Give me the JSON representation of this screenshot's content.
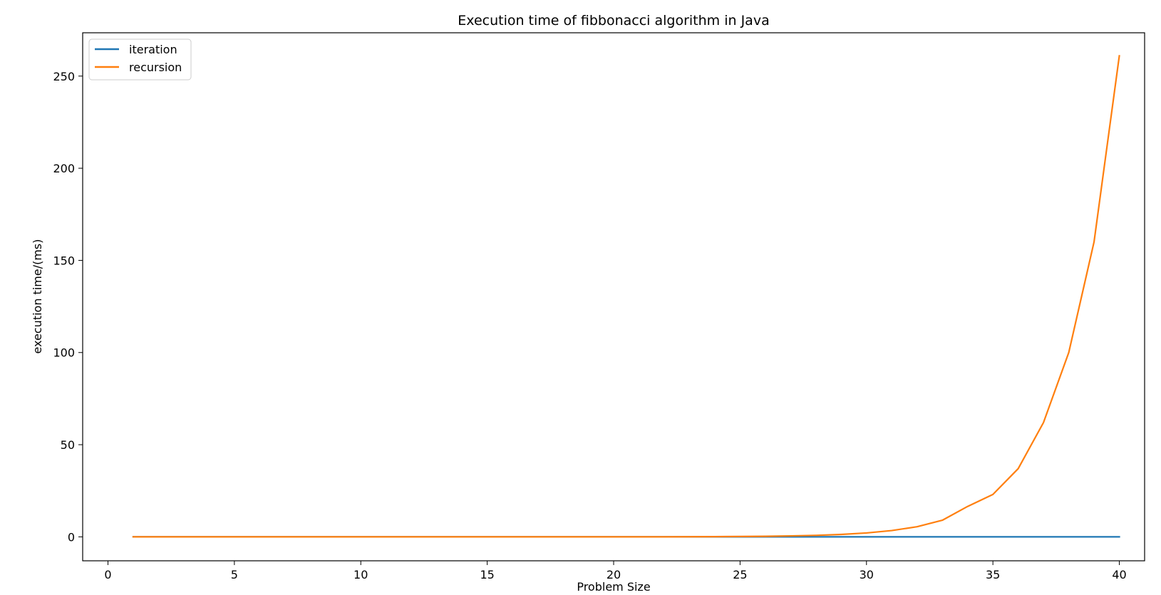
{
  "chart_data": {
    "type": "line",
    "title": "Execution time of fibbonacci algorithm in Java",
    "xlabel": "Problem Size",
    "ylabel": "execution time/(ms)",
    "xlim": [
      -1,
      41
    ],
    "ylim": [
      -13,
      273.5
    ],
    "x_ticks": [
      0,
      5,
      10,
      15,
      20,
      25,
      30,
      35,
      40
    ],
    "x_tick_labels": [
      "0",
      "5",
      "10",
      "15",
      "20",
      "25",
      "30",
      "35",
      "40"
    ],
    "y_ticks": [
      0,
      50,
      100,
      150,
      200,
      250
    ],
    "y_tick_labels": [
      "0",
      "50",
      "100",
      "150",
      "200",
      "250"
    ],
    "grid": false,
    "legend": {
      "position": "top-left",
      "entries": [
        "iteration",
        "recursion"
      ]
    },
    "x": [
      1,
      2,
      3,
      4,
      5,
      6,
      7,
      8,
      9,
      10,
      11,
      12,
      13,
      14,
      15,
      16,
      17,
      18,
      19,
      20,
      21,
      22,
      23,
      24,
      25,
      26,
      27,
      28,
      29,
      30,
      31,
      32,
      33,
      34,
      35,
      36,
      37,
      38,
      39,
      40
    ],
    "series": [
      {
        "name": "iteration",
        "color": "#1f77b4",
        "values": [
          0,
          0,
          0,
          0,
          0,
          0,
          0,
          0,
          0,
          0,
          0,
          0,
          0,
          0,
          0,
          0,
          0,
          0,
          0,
          0,
          0,
          0,
          0,
          0,
          0,
          0,
          0,
          0,
          0,
          0,
          0,
          0,
          0,
          0,
          0,
          0,
          0,
          0,
          0,
          0
        ]
      },
      {
        "name": "recursion",
        "color": "#ff7f0e",
        "values": [
          0,
          0,
          0,
          0,
          0,
          0,
          0,
          0,
          0,
          0,
          0,
          0,
          0,
          0,
          0,
          0,
          0,
          0,
          0,
          0,
          0,
          0,
          0.05,
          0.1,
          0.2,
          0.3,
          0.5,
          0.8,
          1.3,
          2.1,
          3.4,
          5.5,
          9,
          16.5,
          23,
          37,
          62,
          100,
          160,
          261
        ]
      }
    ]
  }
}
